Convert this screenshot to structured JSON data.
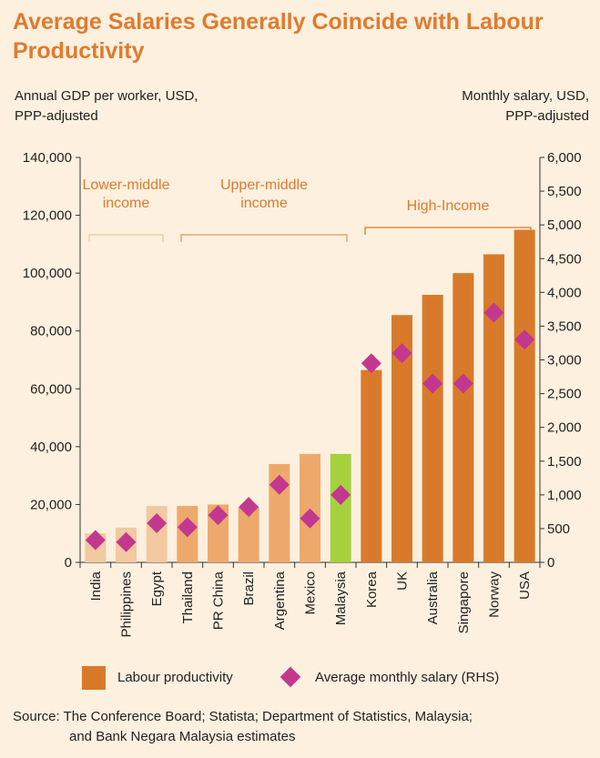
{
  "chart_data": {
    "type": "bar",
    "title": "Average Salaries Generally Coincide with Labour Productivity",
    "left_axis_label": [
      "Annual GDP per worker, USD,",
      "PPP-adjusted"
    ],
    "right_axis_label": [
      "Monthly salary, USD,",
      "PPP-adjusted"
    ],
    "categories": [
      "India",
      "Philippines",
      "Egypt",
      "Thailand",
      "PR China",
      "Brazil",
      "Argentina",
      "Mexico",
      "Malaysia",
      "Korea",
      "UK",
      "Australia",
      "Singapore",
      "Norway",
      "USA"
    ],
    "series": [
      {
        "name": "Labour productivity",
        "axis": "left",
        "values": [
          10000,
          12000,
          19500,
          19500,
          20000,
          19000,
          34000,
          37500,
          37500,
          66500,
          85500,
          92500,
          100000,
          106500,
          115000
        ]
      },
      {
        "name": "Average monthly salary (RHS)",
        "axis": "right",
        "values": [
          330,
          300,
          580,
          520,
          700,
          820,
          1150,
          650,
          1000,
          2950,
          3100,
          2650,
          2650,
          3700,
          3300
        ]
      }
    ],
    "income_groups": [
      {
        "label": [
          "Lower-middle",
          "income"
        ],
        "from": 0,
        "to": 2,
        "color": "#f0c9a0"
      },
      {
        "label": [
          "Upper-middle",
          "income"
        ],
        "from": 3,
        "to": 8,
        "color": "#e39a5a"
      },
      {
        "label": [
          "High-Income"
        ],
        "from": 9,
        "to": 14,
        "color": "#d97a2a"
      }
    ],
    "bar_colors": [
      "#f2c9a1",
      "#f2c9a1",
      "#f2c9a1",
      "#eda96c",
      "#eda96c",
      "#eda96c",
      "#eda96c",
      "#eda96c",
      "#a6d13e",
      "#d97a2a",
      "#d97a2a",
      "#d97a2a",
      "#d97a2a",
      "#d97a2a",
      "#d97a2a"
    ],
    "marker_color": "#c2388f",
    "group_text_color": "#e07a2e",
    "ylim_left": [
      0,
      140000
    ],
    "yticks_left": [
      "0",
      "20,000",
      "40,000",
      "60,000",
      "80,000",
      "100,000",
      "120,000",
      "140,000"
    ],
    "ylim_right": [
      0,
      6000
    ],
    "yticks_right": [
      "0",
      "500",
      "1,000",
      "1,500",
      "2,000",
      "2,500",
      "3,000",
      "3,500",
      "4,000",
      "4,500",
      "5,000",
      "5,500",
      "6,000"
    ]
  },
  "legend": {
    "bar_label": "Labour productivity",
    "marker_label": "Average monthly salary (RHS)"
  },
  "source": {
    "line1": "Source: The Conference Board; Statista; Department of Statistics, Malaysia;",
    "line2": "and Bank Negara Malaysia estimates"
  }
}
